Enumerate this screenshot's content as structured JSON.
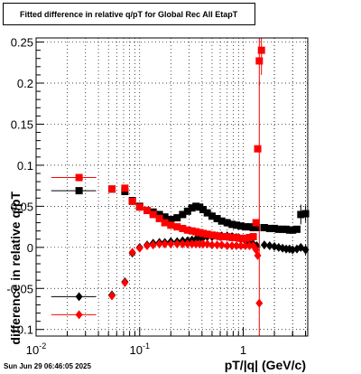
{
  "title": "Fitted difference in relative q/pT for Global Rec All EtapT",
  "timestamp": "Sun Jun 29 06:46:05 2025",
  "chart_data": {
    "type": "scatter",
    "xlabel": "pT/|q| (GeV/c)",
    "ylabel": "difference in relative q/pT",
    "x_scale": "log",
    "xlim": [
      0.01,
      4.2
    ],
    "ylim": [
      -0.108,
      0.255
    ],
    "grid": true,
    "x_ticks": [
      {
        "value": 0.01,
        "label": "10^-2"
      },
      {
        "value": 0.1,
        "label": "10^-1"
      },
      {
        "value": 1,
        "label": "1"
      }
    ],
    "y_ticks": [
      {
        "value": -0.1,
        "label": "-0.1"
      },
      {
        "value": -0.05,
        "label": "-0.05"
      },
      {
        "value": 0,
        "label": "0"
      },
      {
        "value": 0.05,
        "label": "0.05"
      },
      {
        "value": 0.1,
        "label": "0.1"
      },
      {
        "value": 0.15,
        "label": "0.15"
      },
      {
        "value": 0.2,
        "label": "0.2"
      },
      {
        "value": 0.25,
        "label": "0.25"
      }
    ],
    "series": [
      {
        "marker": "square",
        "color": "#000000",
        "points": [
          {
            "x": 0.026,
            "y": 0.069,
            "xerr": 0.012
          },
          {
            "x": 0.054,
            "y": 0.071
          },
          {
            "x": 0.072,
            "y": 0.068
          },
          {
            "x": 0.085,
            "y": 0.057
          },
          {
            "x": 0.1,
            "y": 0.05
          },
          {
            "x": 0.118,
            "y": 0.045
          },
          {
            "x": 0.135,
            "y": 0.043
          },
          {
            "x": 0.155,
            "y": 0.04
          },
          {
            "x": 0.175,
            "y": 0.037
          },
          {
            "x": 0.2,
            "y": 0.034
          },
          {
            "x": 0.23,
            "y": 0.036
          },
          {
            "x": 0.26,
            "y": 0.04
          },
          {
            "x": 0.29,
            "y": 0.044
          },
          {
            "x": 0.32,
            "y": 0.048
          },
          {
            "x": 0.35,
            "y": 0.05
          },
          {
            "x": 0.38,
            "y": 0.049
          },
          {
            "x": 0.41,
            "y": 0.046
          },
          {
            "x": 0.45,
            "y": 0.042
          },
          {
            "x": 0.5,
            "y": 0.038
          },
          {
            "x": 0.56,
            "y": 0.035
          },
          {
            "x": 0.62,
            "y": 0.032
          },
          {
            "x": 0.7,
            "y": 0.03
          },
          {
            "x": 0.78,
            "y": 0.028
          },
          {
            "x": 0.86,
            "y": 0.027
          },
          {
            "x": 0.95,
            "y": 0.026
          },
          {
            "x": 1.05,
            "y": 0.025
          },
          {
            "x": 1.15,
            "y": 0.025
          },
          {
            "x": 1.25,
            "y": 0.024
          },
          {
            "x": 1.35,
            "y": 0.024
          },
          {
            "x": 1.6,
            "y": 0.024
          },
          {
            "x": 1.8,
            "y": 0.023
          },
          {
            "x": 2.0,
            "y": 0.023
          },
          {
            "x": 2.2,
            "y": 0.022
          },
          {
            "x": 2.4,
            "y": 0.022
          },
          {
            "x": 2.6,
            "y": 0.022
          },
          {
            "x": 2.8,
            "y": 0.021
          },
          {
            "x": 3.0,
            "y": 0.021
          },
          {
            "x": 3.3,
            "y": 0.022
          },
          {
            "x": 3.6,
            "y": 0.04,
            "yerr": 0.012
          },
          {
            "x": 4.0,
            "y": 0.041,
            "yerr": 0.01
          }
        ]
      },
      {
        "marker": "diamond",
        "color": "#000000",
        "points": [
          {
            "x": 0.026,
            "y": -0.06,
            "xerr": 0.012
          },
          {
            "x": 0.054,
            "y": -0.058
          },
          {
            "x": 0.072,
            "y": -0.042
          },
          {
            "x": 0.085,
            "y": -0.007
          },
          {
            "x": 0.1,
            "y": 0.0
          },
          {
            "x": 0.118,
            "y": 0.003
          },
          {
            "x": 0.135,
            "y": 0.005
          },
          {
            "x": 0.155,
            "y": 0.006
          },
          {
            "x": 0.175,
            "y": 0.006
          },
          {
            "x": 0.2,
            "y": 0.007
          },
          {
            "x": 0.23,
            "y": 0.007
          },
          {
            "x": 0.26,
            "y": 0.008
          },
          {
            "x": 0.29,
            "y": 0.008
          },
          {
            "x": 0.32,
            "y": 0.009
          },
          {
            "x": 0.35,
            "y": 0.01
          },
          {
            "x": 0.38,
            "y": 0.011
          },
          {
            "x": 0.41,
            "y": 0.012
          },
          {
            "x": 0.45,
            "y": 0.013
          },
          {
            "x": 0.5,
            "y": 0.013
          },
          {
            "x": 0.56,
            "y": 0.014
          },
          {
            "x": 0.62,
            "y": 0.014
          },
          {
            "x": 0.7,
            "y": 0.014
          },
          {
            "x": 0.78,
            "y": 0.013
          },
          {
            "x": 0.86,
            "y": 0.012
          },
          {
            "x": 0.95,
            "y": 0.01
          },
          {
            "x": 1.05,
            "y": 0.008
          },
          {
            "x": 1.15,
            "y": 0.006
          },
          {
            "x": 1.25,
            "y": 0.004
          },
          {
            "x": 1.35,
            "y": 0.002
          },
          {
            "x": 1.6,
            "y": 0.003
          },
          {
            "x": 1.8,
            "y": 0.002
          },
          {
            "x": 2.0,
            "y": 0.001
          },
          {
            "x": 2.2,
            "y": 0.0
          },
          {
            "x": 2.4,
            "y": -0.001
          },
          {
            "x": 2.6,
            "y": -0.002
          },
          {
            "x": 2.8,
            "y": -0.002
          },
          {
            "x": 3.0,
            "y": -0.003
          },
          {
            "x": 3.3,
            "y": -0.002
          },
          {
            "x": 3.6,
            "y": 0.0
          },
          {
            "x": 4.0,
            "y": -0.003,
            "yerr": 0.006
          }
        ]
      },
      {
        "marker": "square",
        "color": "#ff0000",
        "points": [
          {
            "x": 0.026,
            "y": 0.085,
            "xerr": 0.012
          },
          {
            "x": 0.054,
            "y": 0.071
          },
          {
            "x": 0.072,
            "y": 0.072
          },
          {
            "x": 0.085,
            "y": 0.056
          },
          {
            "x": 0.1,
            "y": 0.049
          },
          {
            "x": 0.118,
            "y": 0.045
          },
          {
            "x": 0.135,
            "y": 0.04
          },
          {
            "x": 0.155,
            "y": 0.035
          },
          {
            "x": 0.175,
            "y": 0.03
          },
          {
            "x": 0.2,
            "y": 0.027
          },
          {
            "x": 0.23,
            "y": 0.025
          },
          {
            "x": 0.26,
            "y": 0.023
          },
          {
            "x": 0.29,
            "y": 0.021
          },
          {
            "x": 0.32,
            "y": 0.02
          },
          {
            "x": 0.35,
            "y": 0.019
          },
          {
            "x": 0.38,
            "y": 0.018
          },
          {
            "x": 0.41,
            "y": 0.017
          },
          {
            "x": 0.45,
            "y": 0.016
          },
          {
            "x": 0.5,
            "y": 0.015
          },
          {
            "x": 0.56,
            "y": 0.014
          },
          {
            "x": 0.62,
            "y": 0.013
          },
          {
            "x": 0.7,
            "y": 0.013
          },
          {
            "x": 0.78,
            "y": 0.012
          },
          {
            "x": 0.86,
            "y": 0.012
          },
          {
            "x": 0.95,
            "y": 0.011
          },
          {
            "x": 1.05,
            "y": 0.011
          },
          {
            "x": 1.15,
            "y": 0.012
          },
          {
            "x": 1.25,
            "y": 0.013
          },
          {
            "x": 1.33,
            "y": 0.03
          },
          {
            "x": 1.38,
            "y": 0.12
          },
          {
            "x": 1.43,
            "y": 0.227,
            "yerr": 0.03
          },
          {
            "x": 1.5,
            "y": 0.24,
            "yerr": 0.03
          }
        ]
      },
      {
        "marker": "diamond",
        "color": "#ff0000",
        "points": [
          {
            "x": 0.026,
            "y": -0.082,
            "xerr": 0.012
          },
          {
            "x": 0.054,
            "y": -0.059
          },
          {
            "x": 0.072,
            "y": -0.043
          },
          {
            "x": 0.085,
            "y": -0.006
          },
          {
            "x": 0.1,
            "y": -0.001
          },
          {
            "x": 0.118,
            "y": 0.002
          },
          {
            "x": 0.135,
            "y": 0.003
          },
          {
            "x": 0.155,
            "y": 0.004
          },
          {
            "x": 0.175,
            "y": 0.004
          },
          {
            "x": 0.2,
            "y": 0.004
          },
          {
            "x": 0.23,
            "y": 0.004
          },
          {
            "x": 0.26,
            "y": 0.004
          },
          {
            "x": 0.29,
            "y": 0.004
          },
          {
            "x": 0.32,
            "y": 0.004
          },
          {
            "x": 0.35,
            "y": 0.004
          },
          {
            "x": 0.38,
            "y": 0.004
          },
          {
            "x": 0.41,
            "y": 0.004
          },
          {
            "x": 0.45,
            "y": 0.004
          },
          {
            "x": 0.5,
            "y": 0.003
          },
          {
            "x": 0.56,
            "y": 0.003
          },
          {
            "x": 0.62,
            "y": 0.003
          },
          {
            "x": 0.7,
            "y": 0.002
          },
          {
            "x": 0.78,
            "y": 0.002
          },
          {
            "x": 0.86,
            "y": 0.002
          },
          {
            "x": 0.95,
            "y": 0.002
          },
          {
            "x": 1.05,
            "y": 0.002
          },
          {
            "x": 1.15,
            "y": 0.002
          },
          {
            "x": 1.25,
            "y": 0.002
          },
          {
            "x": 1.33,
            "y": -0.003
          },
          {
            "x": 1.38,
            "y": -0.01
          },
          {
            "x": 1.43,
            "y": -0.068,
            "yerr": 0.27
          }
        ]
      }
    ]
  }
}
